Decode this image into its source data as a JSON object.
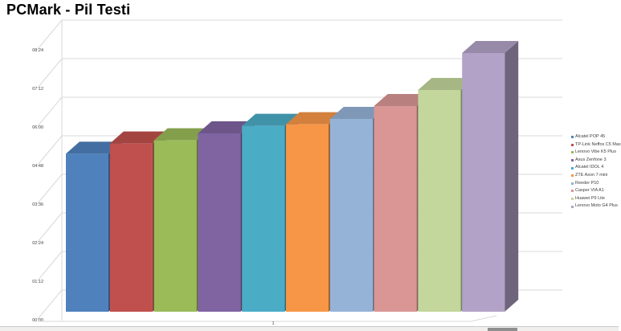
{
  "title": "PCMark - Pil Testi",
  "chart_data": {
    "type": "bar",
    "style": "3d-column",
    "title": "PCMark - Pil Testi",
    "xlabel": "",
    "ylabel": "",
    "category_label": "1",
    "y_ticks": [
      "00:00",
      "01:12",
      "02:24",
      "03:36",
      "04:48",
      "06:00",
      "07:12",
      "08:24"
    ],
    "ylim_minutes": [
      0,
      504
    ],
    "grid": true,
    "legend_position": "right",
    "series": [
      {
        "name": "Alcatel POP 45",
        "value": "4:55",
        "minutes": 295,
        "color": "#4F81BD"
      },
      {
        "name": "TP-Link Neffos C5 Max",
        "value": "5:14",
        "minutes": 314,
        "color": "#C0504D"
      },
      {
        "name": "Lenovo Vibe K5 Plus",
        "value": "5:20",
        "minutes": 320,
        "color": "#9BBB59"
      },
      {
        "name": "Asus Zenfone 3",
        "value": "5:33",
        "minutes": 333,
        "color": "#8064A2"
      },
      {
        "name": "Alcatel IDOL 4",
        "value": "5:47",
        "minutes": 347,
        "color": "#4BACC6"
      },
      {
        "name": "ZTE Axon 7 mini",
        "value": "5:50",
        "minutes": 350,
        "color": "#F79646"
      },
      {
        "name": "Reeder P10",
        "value": "6:00",
        "minutes": 360,
        "color": "#95B3D7"
      },
      {
        "name": "Casper VIA A1",
        "value": "6:24",
        "minutes": 384,
        "color": "#D99694"
      },
      {
        "name": "Huawei P9 Lite",
        "value": "6:54",
        "minutes": 414,
        "color": "#C3D69B"
      },
      {
        "name": "Lenovo Moto G4 Plus",
        "value": "8:03",
        "minutes": 483,
        "color": "#B2A2C7"
      }
    ],
    "colors": {
      "gridline": "#d9d9d9",
      "axis_text": "#404040",
      "background": "#ffffff"
    }
  },
  "scrollbar": {
    "visible": true
  }
}
